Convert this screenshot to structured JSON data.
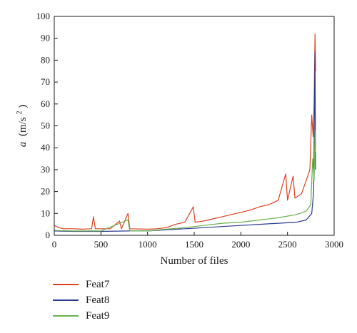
{
  "chart_data": {
    "type": "line",
    "xlabel": "Number of files",
    "ylabel_main": "a",
    "ylabel_unit": "(m/s",
    "ylabel_sup": "2",
    "ylabel_close": ")",
    "xlim": [
      0,
      3000
    ],
    "ylim": [
      0,
      100
    ],
    "xticks": [
      0,
      500,
      1000,
      1500,
      2000,
      2500,
      3000
    ],
    "yticks": [
      0,
      10,
      20,
      30,
      40,
      50,
      60,
      70,
      80,
      90,
      100
    ],
    "grid": false,
    "legend_position": "bottom-left",
    "series": [
      {
        "name": "Feat7",
        "color": "#d9431e",
        "points": [
          [
            0,
            4.5
          ],
          [
            50,
            3.5
          ],
          [
            100,
            3.0
          ],
          [
            200,
            3.0
          ],
          [
            300,
            2.8
          ],
          [
            400,
            3.0
          ],
          [
            420,
            8.5
          ],
          [
            440,
            3.0
          ],
          [
            600,
            3.0
          ],
          [
            700,
            6.5
          ],
          [
            720,
            3.0
          ],
          [
            790,
            10.0
          ],
          [
            810,
            3.0
          ],
          [
            1000,
            2.8
          ],
          [
            1100,
            3.0
          ],
          [
            1200,
            3.5
          ],
          [
            1300,
            5.0
          ],
          [
            1400,
            6.0
          ],
          [
            1490,
            13.0
          ],
          [
            1510,
            6.0
          ],
          [
            1600,
            6.5
          ],
          [
            1700,
            7.5
          ],
          [
            1800,
            8.5
          ],
          [
            1900,
            9.5
          ],
          [
            2000,
            10.5
          ],
          [
            2100,
            11.5
          ],
          [
            2200,
            13.0
          ],
          [
            2300,
            14.0
          ],
          [
            2400,
            16.0
          ],
          [
            2480,
            28.0
          ],
          [
            2500,
            16.0
          ],
          [
            2560,
            27.0
          ],
          [
            2580,
            17.0
          ],
          [
            2650,
            19.0
          ],
          [
            2700,
            25.0
          ],
          [
            2740,
            30.0
          ],
          [
            2760,
            55.0
          ],
          [
            2775,
            45.0
          ],
          [
            2785,
            60.0
          ],
          [
            2795,
            92.0
          ],
          [
            2800,
            75.0
          ]
        ]
      },
      {
        "name": "Feat8",
        "color": "#2b3a8f",
        "points": [
          [
            0,
            2.0
          ],
          [
            200,
            1.8
          ],
          [
            500,
            1.8
          ],
          [
            800,
            2.0
          ],
          [
            1000,
            2.0
          ],
          [
            1200,
            2.5
          ],
          [
            1400,
            3.0
          ],
          [
            1600,
            3.5
          ],
          [
            1800,
            4.0
          ],
          [
            2000,
            4.5
          ],
          [
            2200,
            5.0
          ],
          [
            2400,
            5.5
          ],
          [
            2600,
            6.0
          ],
          [
            2700,
            7.0
          ],
          [
            2760,
            10.0
          ],
          [
            2780,
            20.0
          ],
          [
            2795,
            84.0
          ],
          [
            2800,
            30.0
          ]
        ]
      },
      {
        "name": "Feat9",
        "color": "#6ab04c",
        "points": [
          [
            0,
            2.2
          ],
          [
            200,
            2.0
          ],
          [
            500,
            2.0
          ],
          [
            790,
            7.0
          ],
          [
            810,
            2.0
          ],
          [
            1000,
            2.0
          ],
          [
            1200,
            2.8
          ],
          [
            1400,
            3.5
          ],
          [
            1600,
            4.5
          ],
          [
            1800,
            5.5
          ],
          [
            2000,
            6.0
          ],
          [
            2200,
            7.0
          ],
          [
            2400,
            8.0
          ],
          [
            2600,
            9.5
          ],
          [
            2700,
            11.0
          ],
          [
            2750,
            14.0
          ],
          [
            2770,
            35.0
          ],
          [
            2785,
            25.0
          ],
          [
            2795,
            48.0
          ],
          [
            2800,
            38.0
          ]
        ]
      }
    ]
  }
}
